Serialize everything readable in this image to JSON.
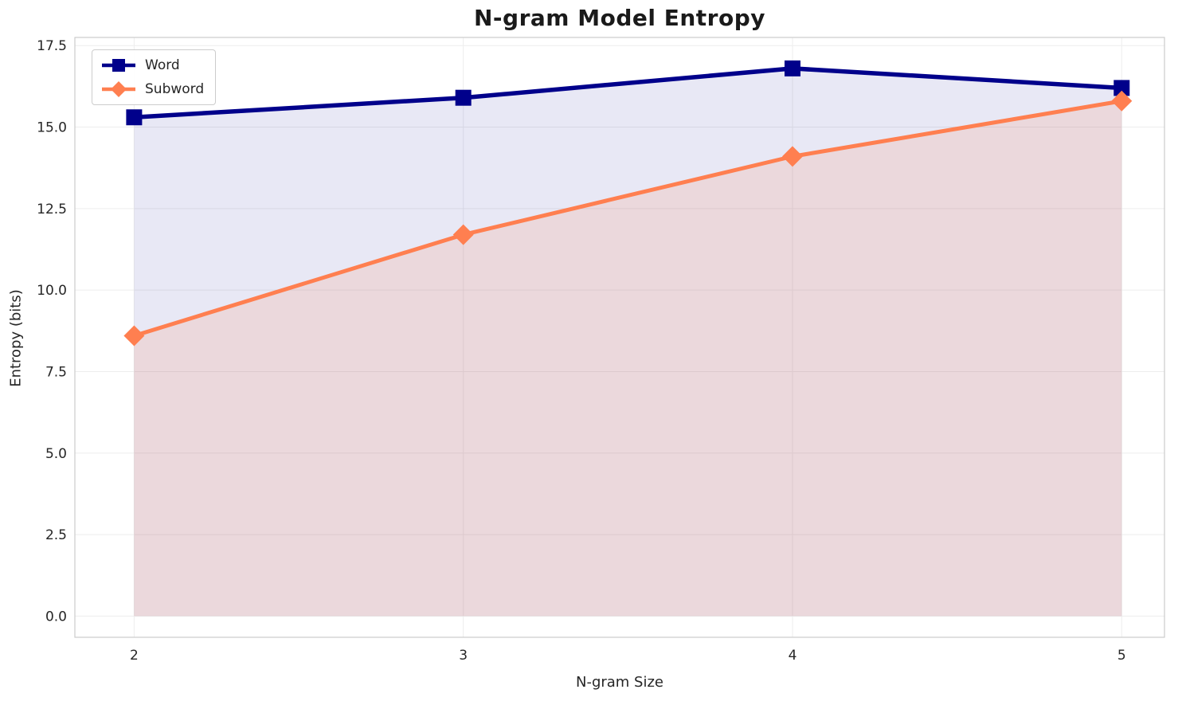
{
  "chart": {
    "title": "N-gram Model Entropy",
    "xlabel": "N-gram Size",
    "ylabel": "Entropy (bits)"
  },
  "chart_data": {
    "type": "line",
    "x": [
      2,
      3,
      4,
      5
    ],
    "xtick_labels": [
      "2",
      "3",
      "4",
      "5"
    ],
    "yticks": [
      0.0,
      2.5,
      5.0,
      7.5,
      10.0,
      12.5,
      15.0,
      17.5
    ],
    "ytick_labels": [
      "0.0",
      "2.5",
      "5.0",
      "7.5",
      "10.0",
      "12.5",
      "15.0",
      "17.5"
    ],
    "series": [
      {
        "name": "Word",
        "values": [
          15.3,
          15.9,
          16.8,
          16.2
        ],
        "color": "#00008B",
        "marker": "square",
        "fill_alpha": 0.09,
        "line_width": 5.5
      },
      {
        "name": "Subword",
        "values": [
          8.6,
          11.7,
          14.1,
          15.8
        ],
        "color": "#FF7F50",
        "marker": "diamond",
        "fill_alpha": 0.15,
        "line_width": 5
      }
    ],
    "title": "N-gram Model Entropy",
    "xlabel": "N-gram Size",
    "ylabel": "Entropy (bits)",
    "xlim": [
      1.82,
      5.13
    ],
    "ylim": [
      -0.65,
      17.75
    ],
    "fill_baseline": 0,
    "grid": true,
    "legend_position": "upper left",
    "colors": {
      "grid": "#ededed",
      "spine": "#cccccc",
      "tick_text": "#262626"
    }
  }
}
